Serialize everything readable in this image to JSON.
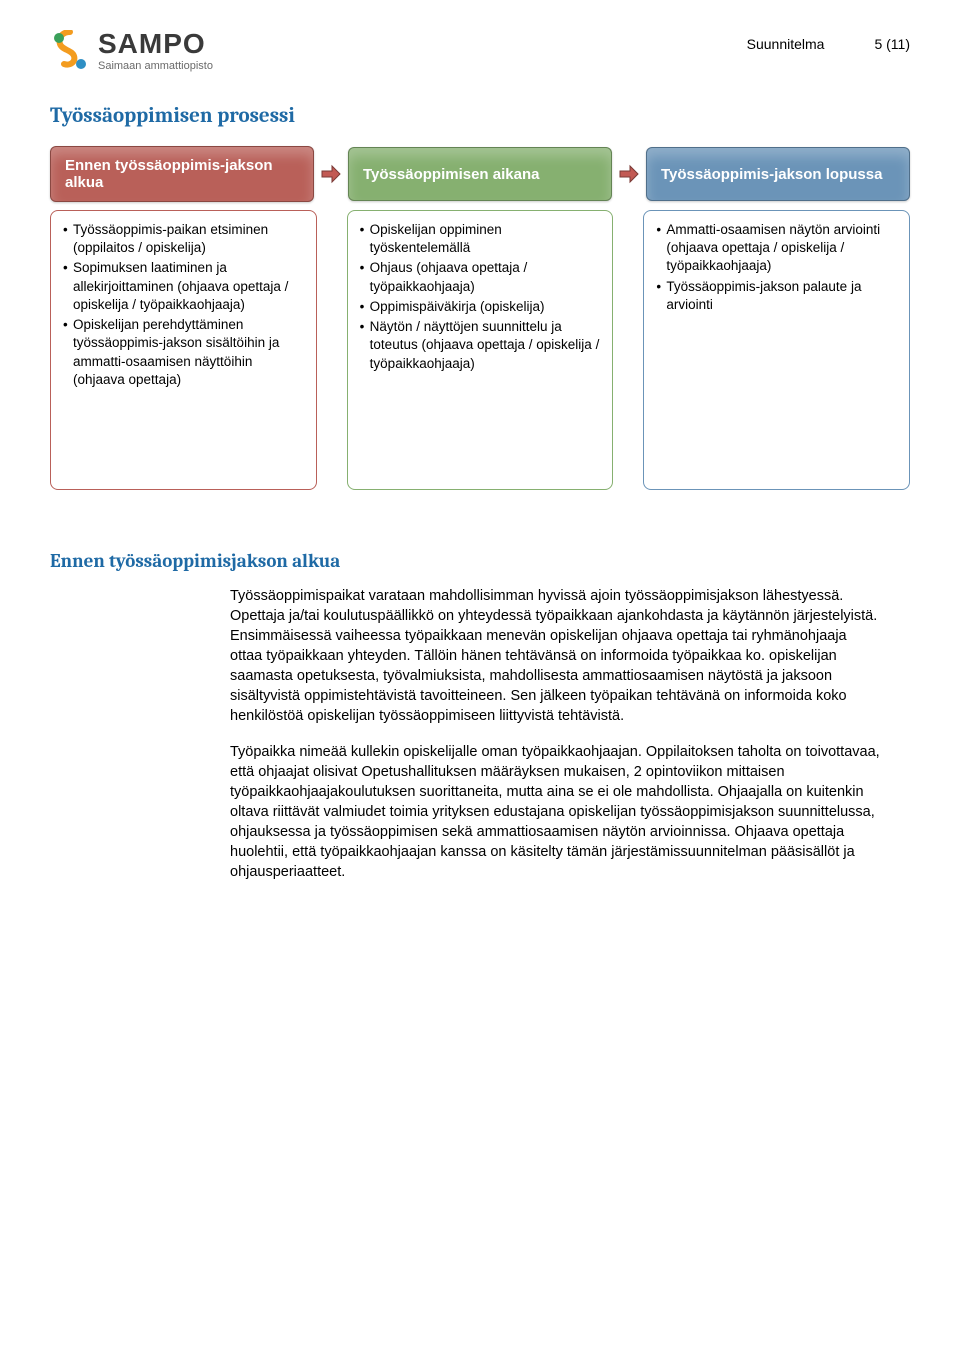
{
  "header": {
    "logo_name": "SAMPO",
    "logo_sub": "Saimaan ammattiopisto",
    "doc_type": "Suunnitelma",
    "page_num": "5 (11)"
  },
  "section_title": "Työssäoppimisen prosessi",
  "flow": {
    "stages": [
      {
        "title": "Ennen työssäoppimis-jakson alkua",
        "header_bg": "#b96059",
        "body_border": "#b96059",
        "items": [
          "Työssäoppimis-paikan etsiminen (oppilaitos / opiskelija)",
          "Sopimuksen laatiminen ja allekirjoittaminen (ohjaava opettaja / opiskelija / työpaikkaohjaaja)",
          "Opiskelijan perehdyttäminen työssäoppimis-jakson sisältöihin ja ammatti-osaamisen näyttöihin (ohjaava opettaja)"
        ]
      },
      {
        "title": "Työssäoppimisen aikana",
        "header_bg": "#86b070",
        "body_border": "#86b070",
        "items": [
          "Opiskelijan oppiminen työskentelemällä",
          "Ohjaus (ohjaava opettaja / työpaikkaohjaaja)",
          "Oppimispäiväkirja (opiskelija)",
          "Näytön / näyttöjen suunnittelu ja toteutus (ohjaava opettaja / opiskelija / työpaikkaohjaaja)"
        ]
      },
      {
        "title": "Työssäoppimis-jakson lopussa",
        "header_bg": "#6b94b8",
        "body_border": "#6b94b8",
        "items": [
          "Ammatti-osaamisen näytön arviointi (ohjaava opettaja / opiskelija / työpaikkaohjaaja)",
          "Työssäoppimis-jakson palaute ja arviointi"
        ]
      }
    ],
    "arrow_fill": "#c25a54",
    "arrow_stroke": "#7a3a36"
  },
  "sub_title": "Ennen työssäoppimisjakson alkua",
  "paragraphs": [
    "Työssäoppimispaikat varataan mahdollisimman hyvissä ajoin työssäoppimisjakson lähestyessä. Opettaja ja/tai koulutuspäällikkö on yhteydessä työpaikkaan ajankohdasta ja käytännön järjestelyistä. Ensimmäisessä vaiheessa työpaikkaan menevän opiskelijan ohjaava opettaja tai ryhmänohjaaja ottaa työpaikkaan yhteyden. Tällöin hänen tehtävänsä on informoida työpaikkaa ko. opiskelijan saamasta opetuksesta, työvalmiuksista, mahdollisesta ammattiosaamisen näytöstä ja jaksoon sisältyvistä oppimistehtävistä tavoitteineen. Sen jälkeen työpaikan tehtävänä on informoida koko henkilöstöä opiskelijan työssäoppimiseen liittyvistä tehtävistä.",
    "Työpaikka nimeää kullekin opiskelijalle oman työpaikkaohjaajan. Oppilaitoksen taholta on toivottavaa, että ohjaajat olisivat Opetushallituksen määräyksen mukaisen, 2 opintoviikon mittaisen työpaikkaohjaajakoulutuksen suorittaneita, mutta aina se ei ole mahdollista. Ohjaajalla on kuitenkin oltava riittävät valmiudet toimia yrityksen edustajana opiskelijan työssäoppimisjakson suunnittelussa, ohjauksessa ja työssäoppimisen sekä ammattiosaamisen näytön arvioinnissa. Ohjaava opettaja huolehtii, että työpaikkaohjaajan kanssa on käsitelty tämän järjestämissuunnitelman pääsisällöt ja ohjausperiaatteet."
  ]
}
